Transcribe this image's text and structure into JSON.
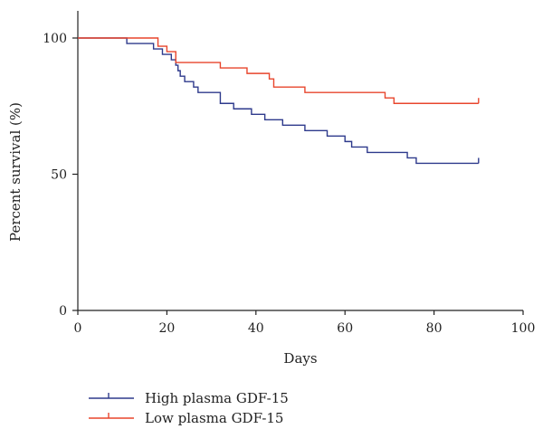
{
  "chart_data": {
    "type": "line",
    "subtype": "kaplan-meier step",
    "title": "",
    "xlabel": "Days",
    "ylabel": "Percent survival (%)",
    "xlim": [
      0,
      100
    ],
    "ylim": [
      0,
      100
    ],
    "x_ticks": [
      0,
      20,
      40,
      60,
      80,
      100
    ],
    "y_ticks": [
      0,
      50,
      100
    ],
    "x_tick_labels": [
      "0",
      "20",
      "40",
      "60",
      "80",
      "100"
    ],
    "y_tick_labels": [
      "0",
      "50",
      "100"
    ],
    "grid": false,
    "legend_placement": "bottom-left",
    "series": [
      {
        "name": "High plasma GDF-15",
        "color": "#2e3a8c",
        "points": [
          [
            0,
            100
          ],
          [
            11,
            98
          ],
          [
            17,
            96
          ],
          [
            19,
            94
          ],
          [
            21,
            92
          ],
          [
            22,
            90
          ],
          [
            22.5,
            88
          ],
          [
            23,
            86
          ],
          [
            24,
            84
          ],
          [
            26,
            82
          ],
          [
            27,
            80
          ],
          [
            32,
            76
          ],
          [
            35,
            74
          ],
          [
            39,
            72
          ],
          [
            42,
            70
          ],
          [
            46,
            68
          ],
          [
            51,
            66
          ],
          [
            56,
            64
          ],
          [
            60,
            62
          ],
          [
            61.5,
            60
          ],
          [
            65,
            58
          ],
          [
            74,
            56
          ],
          [
            76,
            54
          ],
          [
            90,
            54
          ]
        ],
        "end_censor": [
          90,
          56
        ]
      },
      {
        "name": "Low plasma GDF-15",
        "color": "#e8452c",
        "points": [
          [
            0,
            100
          ],
          [
            18,
            97
          ],
          [
            20,
            95
          ],
          [
            22,
            91
          ],
          [
            32,
            89
          ],
          [
            38,
            87
          ],
          [
            43,
            85
          ],
          [
            44,
            82
          ],
          [
            51,
            80
          ],
          [
            69,
            78
          ],
          [
            71,
            76
          ],
          [
            90,
            76
          ]
        ],
        "end_censor": [
          90,
          78
        ]
      }
    ]
  }
}
